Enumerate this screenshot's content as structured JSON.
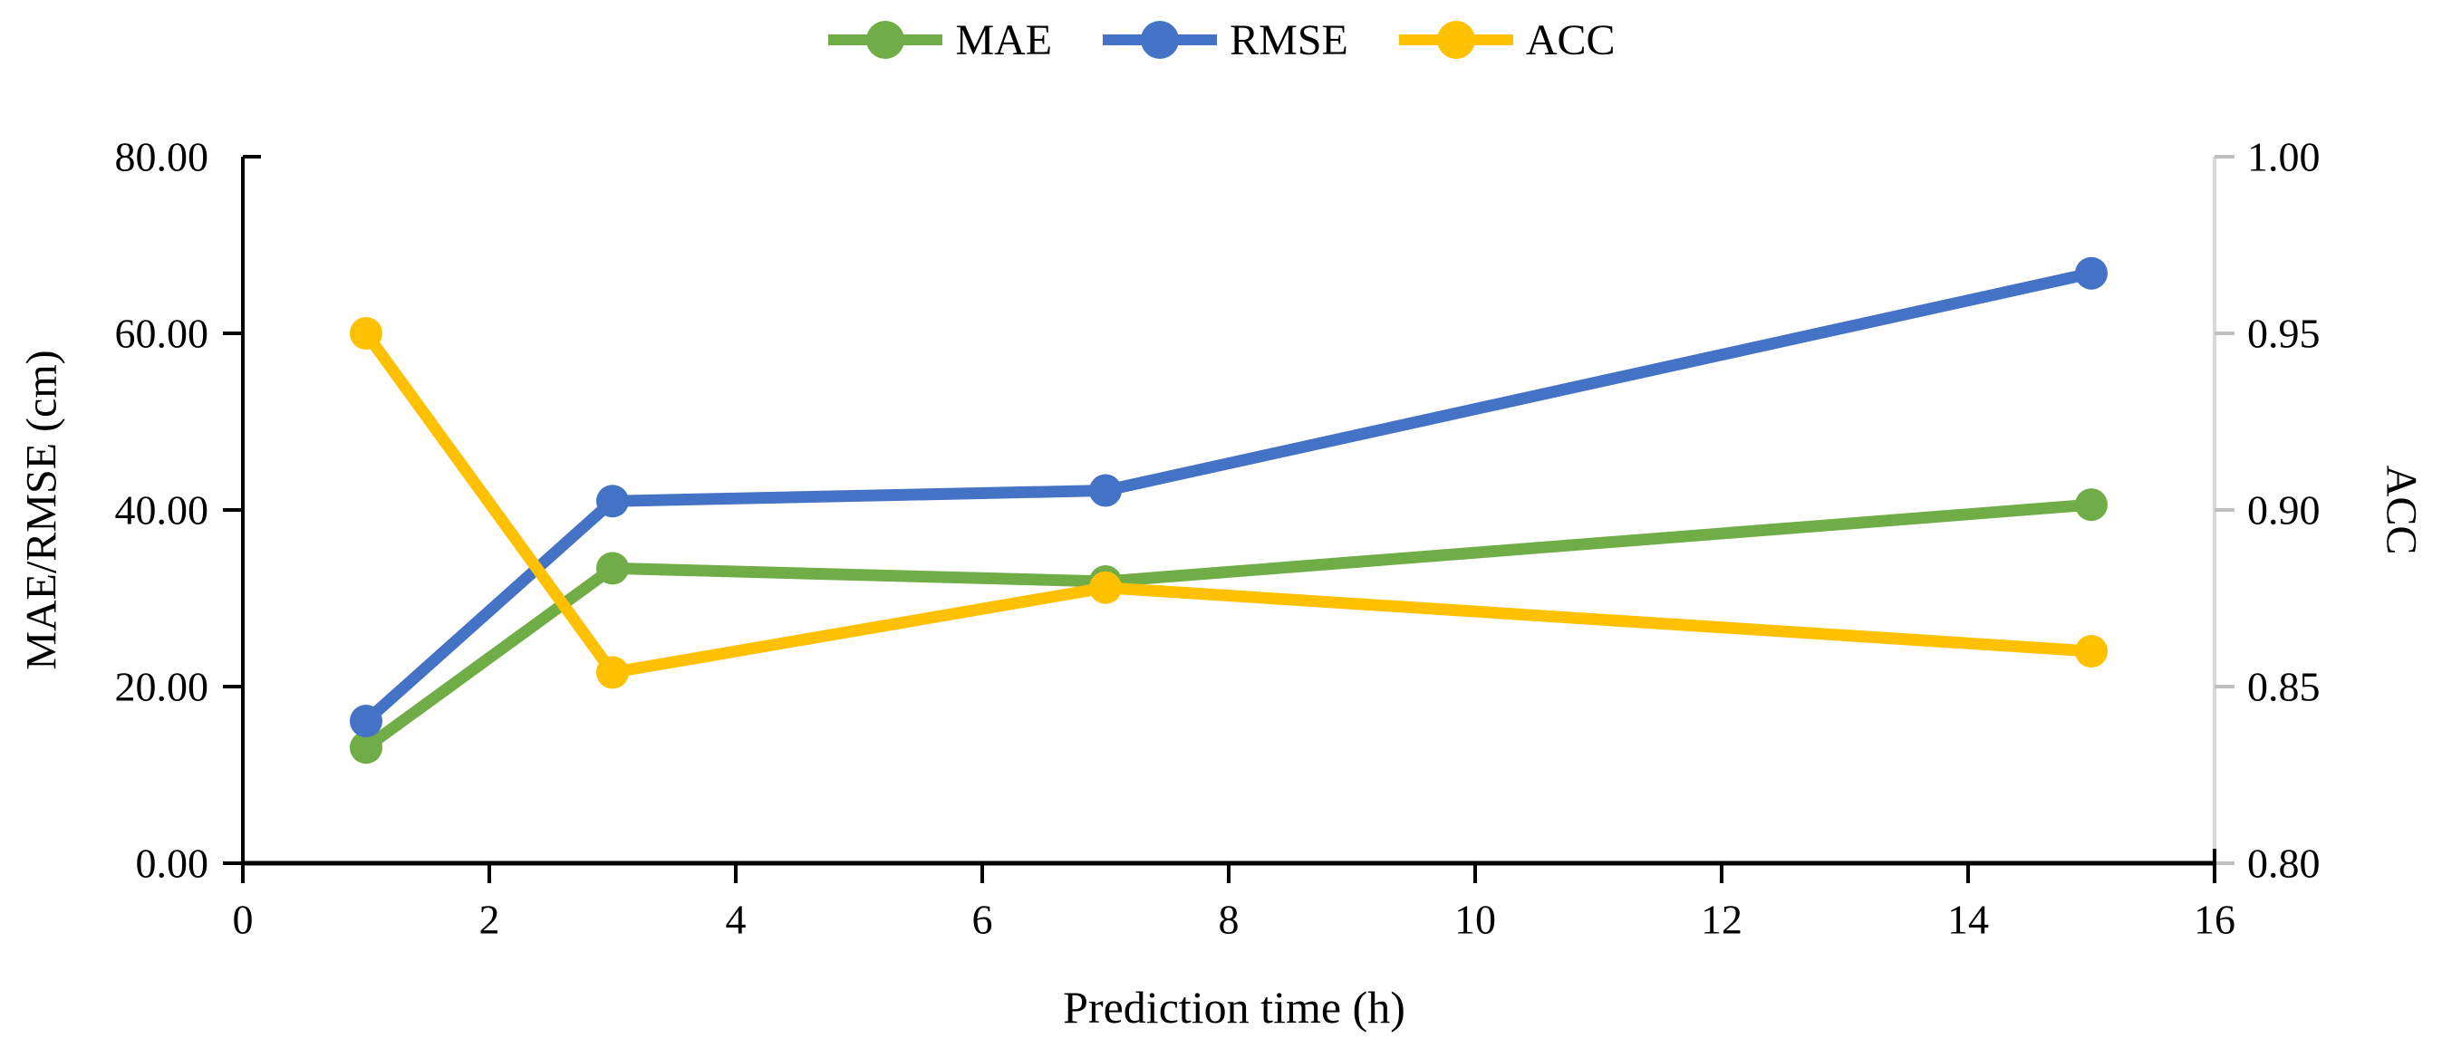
{
  "page": {
    "background": "#ffffff",
    "text_color": "#000000"
  },
  "legend": {
    "items": [
      {
        "label": "MAE",
        "color": "#70AD47"
      },
      {
        "label": "RMSE",
        "color": "#4472C4"
      },
      {
        "label": "ACC",
        "color": "#FFC000"
      }
    ]
  },
  "chart_data": {
    "type": "line",
    "x": [
      1,
      3,
      7,
      15
    ],
    "series": [
      {
        "name": "MAE",
        "axis": "left",
        "color": "#70AD47",
        "values": [
          13.1,
          33.4,
          31.9,
          40.6
        ]
      },
      {
        "name": "RMSE",
        "axis": "left",
        "color": "#4472C4",
        "values": [
          16.1,
          41.0,
          42.2,
          66.8
        ]
      },
      {
        "name": "ACC",
        "axis": "right",
        "color": "#FFC000",
        "values": [
          0.95,
          0.854,
          0.878,
          0.86
        ]
      }
    ],
    "x_axis": {
      "label": "Prediction time (h)",
      "min": 0,
      "max": 16,
      "tick_step": 2,
      "tick_labels": [
        "0",
        "2",
        "4",
        "6",
        "8",
        "10",
        "12",
        "14",
        "16"
      ]
    },
    "y_left_axis": {
      "label": "MAE/RMSE (cm)",
      "min": 0,
      "max": 80,
      "tick_step": 20,
      "tick_labels": [
        "0.00",
        "20.00",
        "40.00",
        "60.00",
        "80.00"
      ]
    },
    "y_right_axis": {
      "label": "ACC",
      "min": 0.8,
      "max": 1.0,
      "tick_step": 0.05,
      "tick_labels": [
        "0.80",
        "0.85",
        "0.90",
        "0.95",
        "1.00"
      ]
    },
    "grid": "off",
    "legend_position": "top-center",
    "marker": "circle"
  },
  "colors": {
    "axis_line": "#000000",
    "right_axis_line": "#D9D9D9",
    "right_axis_tick": "#BFBFBF",
    "tick_text": "#000000"
  }
}
